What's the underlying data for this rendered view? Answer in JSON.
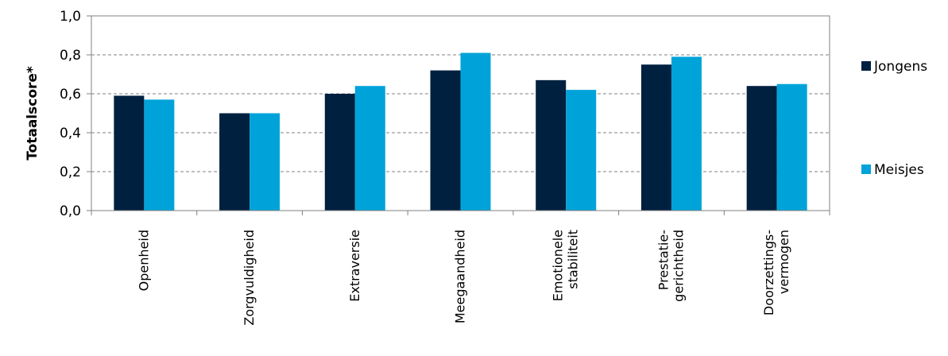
{
  "chart_data": {
    "type": "bar",
    "categories": [
      [
        "Openheid"
      ],
      [
        "Zorgvuldigheid"
      ],
      [
        "Extraversie"
      ],
      [
        "Meegaandheid"
      ],
      [
        "Emotionele",
        "stabiliteit"
      ],
      [
        "Prestatie-",
        "gerichtheid"
      ],
      [
        "Doorzettings-",
        "vermogen"
      ]
    ],
    "series": [
      {
        "name": "Jongens",
        "color": "#00203f",
        "values": [
          0.59,
          0.5,
          0.6,
          0.72,
          0.67,
          0.75,
          0.64
        ]
      },
      {
        "name": "Meisjes",
        "color": "#00a3d9",
        "values": [
          0.57,
          0.5,
          0.64,
          0.81,
          0.62,
          0.79,
          0.65
        ]
      }
    ],
    "ylabel": "Totaalscore*",
    "ylim": [
      0,
      1.0
    ],
    "yticks": [
      "0,0",
      "0,2",
      "0,4",
      "0,6",
      "0,8",
      "1,0"
    ],
    "grid": true,
    "legend": "right"
  }
}
